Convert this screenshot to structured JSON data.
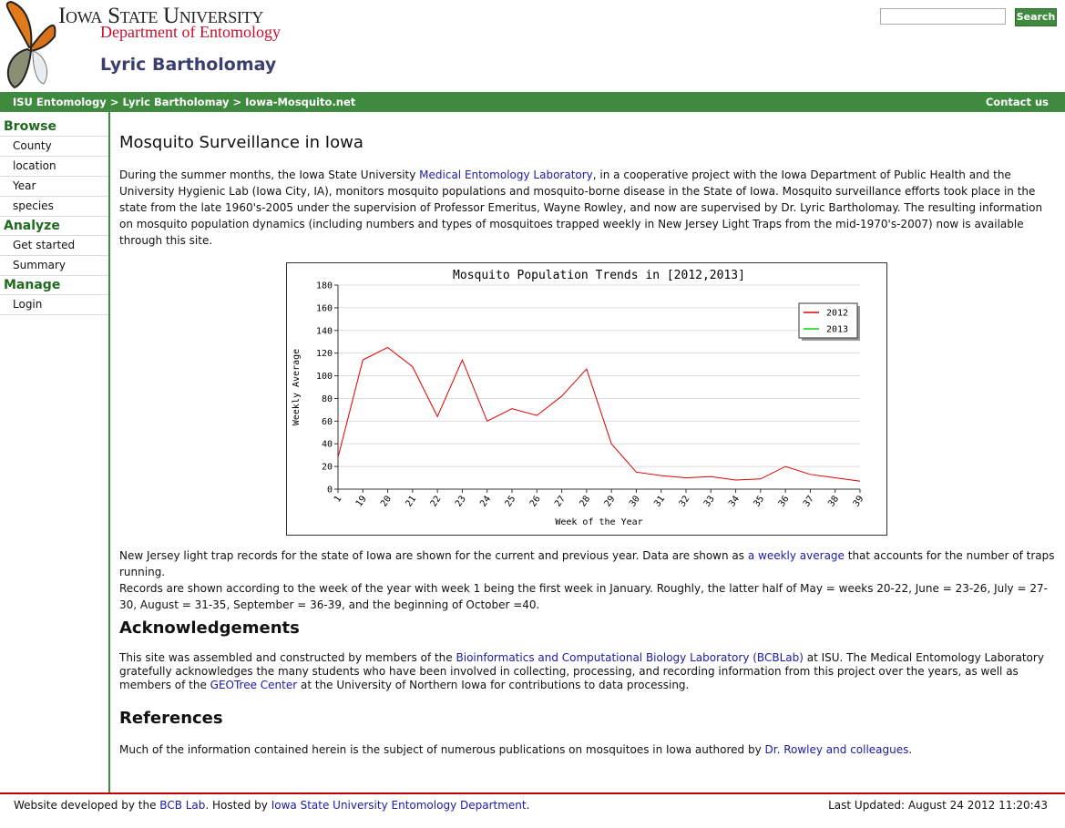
{
  "header": {
    "university": "Iowa State University",
    "department": "Department of Entomology",
    "site_title": "Lyric Bartholomay",
    "search_button": "Search"
  },
  "breadcrumb": {
    "items": [
      "ISU Entomology",
      "Lyric Bartholomay",
      "Iowa-Mosquito.net"
    ],
    "separator": ">",
    "contact": "Contact us"
  },
  "sidebar": [
    {
      "heading": "Browse",
      "links": [
        "County",
        "location",
        "Year",
        "species"
      ]
    },
    {
      "heading": "Analyze",
      "links": [
        "Get started",
        "Summary"
      ]
    },
    {
      "heading": "Manage",
      "links": [
        "Login"
      ]
    }
  ],
  "content": {
    "title": "Mosquito Surveillance in Iowa",
    "intro": [
      "During the summer months, the Iowa State University ",
      "Medical Entomology Laboratory",
      ", in a cooperative project with the Iowa Department of Public Health and the University Hygienic Lab (Iowa City, IA), monitors mosquito populations and mosquito-borne disease in the State of Iowa. Mosquito surveillance efforts took place in the state from the late 1960's-2005 under the supervision of Professor Emeritus, Wayne Rowley, and now are supervised by Dr. Lyric Bartholomay. The resulting information on mosquito population dynamics (including numbers and types of mosquitoes trapped weekly in New Jersey Light Traps from the mid-1970's-2007) now is available through this site."
    ],
    "notes": [
      "New Jersey light trap records for the state of Iowa are shown for the current and previous year. Data are shown as ",
      "a weekly average",
      " that accounts for the number of traps running.",
      "Records are shown according to the week of the year with week 1 being the first week in January. Roughly, the latter half of May = weeks 20-22, June = 23-26, July = 27-30, August = 31-35, September = 36-39, and the beginning of October =40."
    ],
    "ack_heading": "Acknowledgements",
    "ack": [
      "This site was assembled and constructed by members of the ",
      "Bioinformatics and Computational Biology Laboratory (BCBLab)",
      " at ISU. The Medical Entomology Laboratory gratefully acknowledges the many students who have been involved in collecting, processing, and recording information from this project over the years, as well as members of the ",
      "GEOTree Center",
      " at the University of Northern Iowa for contributions to data processing."
    ],
    "ref_heading": "References",
    "ref": [
      "Much of the information contained herein is the subject of numerous publications on mosquitoes in Iowa authored by ",
      "Dr. Rowley and colleagues",
      "."
    ]
  },
  "chart_data": {
    "type": "line",
    "title": "Mosquito Population Trends in [2012,2013]",
    "x_label": "Week of the Year",
    "y_label": "Weekly Average",
    "categories": [
      "1",
      "19",
      "20",
      "21",
      "22",
      "23",
      "24",
      "25",
      "26",
      "27",
      "28",
      "29",
      "30",
      "31",
      "32",
      "33",
      "34",
      "35",
      "36",
      "37",
      "38",
      "39"
    ],
    "series": [
      {
        "name": "2012",
        "color": "#dd0000",
        "values": [
          28,
          114,
          125,
          108,
          64,
          114,
          60,
          71,
          65,
          82,
          106,
          40,
          15,
          12,
          10,
          11,
          8,
          9,
          20,
          13,
          10,
          7
        ]
      },
      {
        "name": "2013",
        "color": "#00dd00",
        "values": [
          null,
          null,
          null,
          null,
          null,
          null,
          null,
          null,
          null,
          null,
          null,
          null,
          null,
          null,
          null,
          null,
          null,
          null,
          null,
          null,
          null,
          null
        ]
      }
    ],
    "ylim": [
      0,
      180
    ],
    "yticks": [
      0,
      20,
      40,
      60,
      80,
      100,
      120,
      140,
      160,
      180
    ],
    "grid": true,
    "legend": "top-right"
  },
  "footer": {
    "left": [
      "Website developed by the ",
      "BCB Lab",
      ". Hosted by ",
      "Iowa State University Entomology Department",
      "."
    ],
    "updated": "Last Updated: August 24 2012 11:20:43"
  }
}
